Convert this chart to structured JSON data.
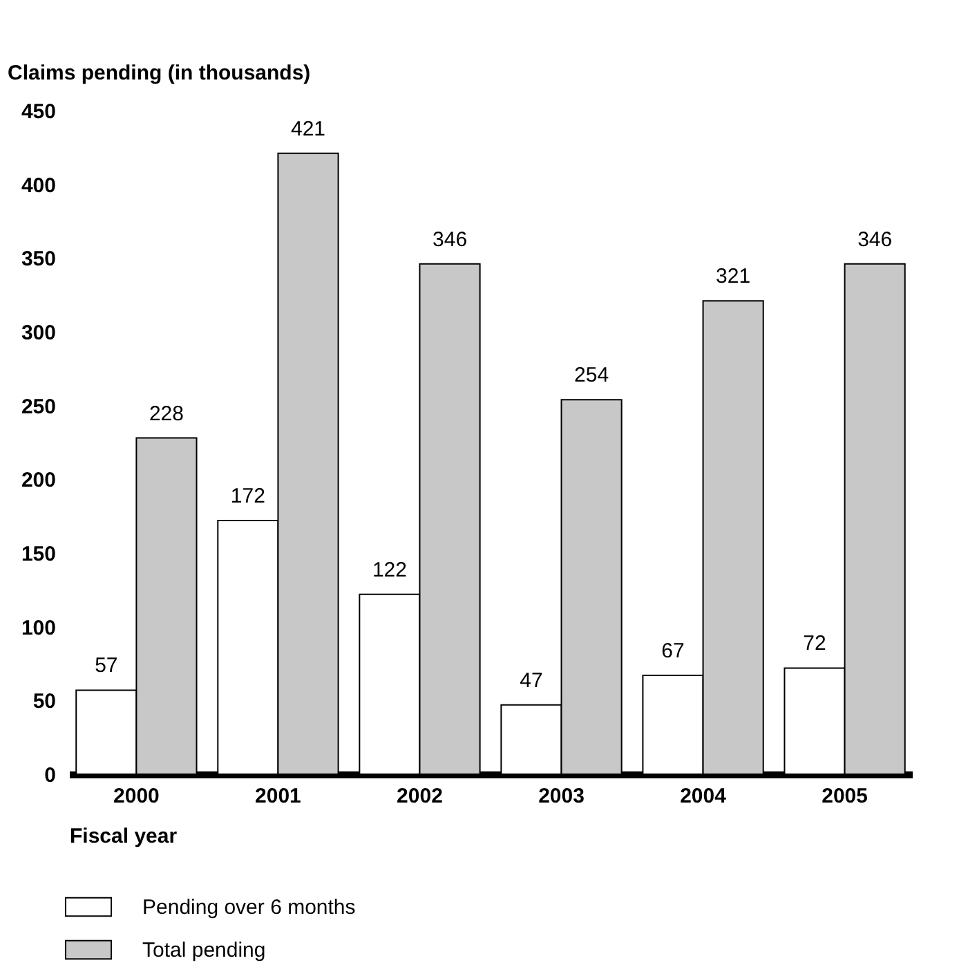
{
  "chart_data": {
    "type": "bar",
    "ylabel": "Claims pending (in thousands)",
    "xlabel": "Fiscal year",
    "categories": [
      "2000",
      "2001",
      "2002",
      "2003",
      "2004",
      "2005"
    ],
    "series": [
      {
        "name": "Pending over 6 months",
        "color": "#ffffff",
        "values": [
          57,
          172,
          122,
          47,
          67,
          72
        ]
      },
      {
        "name": "Total pending",
        "color": "#c8c8c8",
        "values": [
          228,
          421,
          346,
          254,
          321,
          346
        ]
      }
    ],
    "ylim": [
      0,
      450
    ],
    "yticks": [
      0,
      50,
      100,
      150,
      200,
      250,
      300,
      350,
      400,
      450
    ],
    "data_labels": true,
    "grid": false,
    "legend": "bottom left"
  }
}
